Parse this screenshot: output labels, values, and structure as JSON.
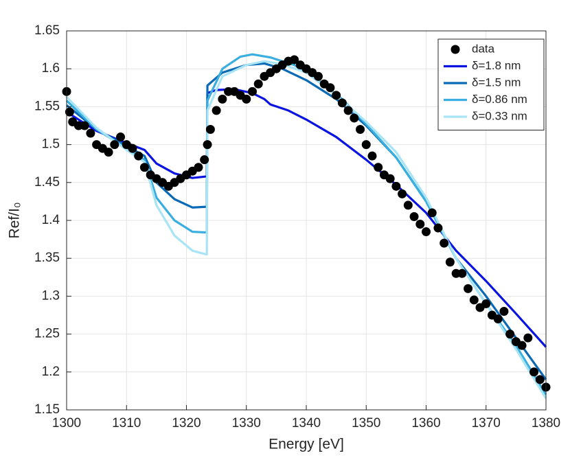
{
  "chart_data": {
    "type": "line",
    "xlabel": "Energy [eV]",
    "ylabel": "Ref/I₀",
    "xlim": [
      1300,
      1380
    ],
    "xticks": [
      1300,
      1310,
      1320,
      1330,
      1340,
      1350,
      1360,
      1370,
      1380
    ],
    "ylim": [
      1.15,
      1.65
    ],
    "yticks": [
      1.15,
      1.2,
      1.25,
      1.3,
      1.35,
      1.4,
      1.45,
      1.5,
      1.55,
      1.6,
      1.65
    ],
    "grid": true,
    "legend": "northeast",
    "series": [
      {
        "name": "data",
        "color": "#000000",
        "style": "markers",
        "x": [
          1300,
          1300.5,
          1301,
          1302,
          1303,
          1304,
          1305,
          1306,
          1307,
          1308,
          1309,
          1310,
          1311,
          1312,
          1313,
          1314,
          1315,
          1316,
          1317,
          1318,
          1319,
          1320,
          1321,
          1322,
          1323,
          1323.5,
          1324,
          1325,
          1326,
          1327,
          1328,
          1329,
          1330,
          1331,
          1332,
          1333,
          1334,
          1335,
          1336,
          1337,
          1338,
          1339,
          1340,
          1341,
          1342,
          1343,
          1344,
          1345,
          1346,
          1347,
          1348,
          1349,
          1350,
          1351,
          1352,
          1353,
          1354,
          1355,
          1356,
          1357,
          1358,
          1359,
          1360,
          1361,
          1362,
          1363,
          1364,
          1365,
          1366,
          1367,
          1368,
          1369,
          1370,
          1371,
          1372,
          1373,
          1374,
          1375,
          1376,
          1377,
          1378,
          1379,
          1380
        ],
        "values": [
          1.57,
          1.543,
          1.53,
          1.525,
          1.525,
          1.515,
          1.5,
          1.495,
          1.49,
          1.5,
          1.51,
          1.5,
          1.495,
          1.485,
          1.47,
          1.46,
          1.455,
          1.45,
          1.445,
          1.45,
          1.455,
          1.46,
          1.465,
          1.47,
          1.48,
          1.5,
          1.52,
          1.545,
          1.56,
          1.57,
          1.57,
          1.565,
          1.56,
          1.57,
          1.58,
          1.59,
          1.595,
          1.6,
          1.605,
          1.61,
          1.612,
          1.605,
          1.6,
          1.595,
          1.59,
          1.58,
          1.575,
          1.565,
          1.555,
          1.545,
          1.535,
          1.52,
          1.5,
          1.485,
          1.47,
          1.46,
          1.455,
          1.445,
          1.435,
          1.42,
          1.405,
          1.395,
          1.385,
          1.41,
          1.39,
          1.37,
          1.345,
          1.33,
          1.33,
          1.31,
          1.295,
          1.285,
          1.29,
          1.275,
          1.27,
          1.28,
          1.25,
          1.24,
          1.235,
          1.245,
          1.2,
          1.19,
          1.18
        ]
      },
      {
        "name": "δ=1.8 nm",
        "color": "#0a14e0",
        "style": "line",
        "x": [
          1300,
          1305,
          1310,
          1313,
          1315,
          1318,
          1321,
          1323.4,
          1323.5,
          1325,
          1328,
          1331,
          1333,
          1334,
          1337,
          1340,
          1345,
          1350,
          1355,
          1360,
          1365,
          1370,
          1375,
          1380
        ],
        "values": [
          1.543,
          1.518,
          1.502,
          1.493,
          1.475,
          1.462,
          1.456,
          1.458,
          1.568,
          1.572,
          1.573,
          1.568,
          1.56,
          1.553,
          1.545,
          1.533,
          1.51,
          1.48,
          1.447,
          1.41,
          1.36,
          1.32,
          1.277,
          1.233
        ]
      },
      {
        "name": "δ=1.5 nm",
        "color": "#0a6ab5",
        "style": "line",
        "x": [
          1300,
          1305,
          1310,
          1313,
          1315,
          1318,
          1321,
          1323.4,
          1323.5,
          1326,
          1330,
          1333,
          1336,
          1340,
          1345,
          1350,
          1355,
          1360,
          1365,
          1370,
          1375,
          1380
        ],
        "values": [
          1.552,
          1.52,
          1.498,
          1.485,
          1.45,
          1.428,
          1.417,
          1.418,
          1.578,
          1.595,
          1.605,
          1.607,
          1.6,
          1.585,
          1.56,
          1.525,
          1.483,
          1.425,
          1.35,
          1.3,
          1.245,
          1.19
        ]
      },
      {
        "name": "δ=0.86 nm",
        "color": "#3aaede",
        "style": "line",
        "x": [
          1300,
          1305,
          1310,
          1313,
          1315,
          1318,
          1321,
          1323.4,
          1323.5,
          1326,
          1329,
          1331,
          1334,
          1338,
          1342,
          1346,
          1350,
          1355,
          1360,
          1365,
          1370,
          1375,
          1380
        ],
        "values": [
          1.558,
          1.52,
          1.495,
          1.48,
          1.43,
          1.4,
          1.385,
          1.384,
          1.558,
          1.6,
          1.616,
          1.619,
          1.615,
          1.605,
          1.585,
          1.56,
          1.527,
          1.483,
          1.425,
          1.35,
          1.29,
          1.235,
          1.17
        ]
      },
      {
        "name": "δ=0.33 nm",
        "color": "#a8e4f5",
        "style": "line",
        "x": [
          1300,
          1305,
          1310,
          1313,
          1315,
          1318,
          1321,
          1323.4,
          1323.5,
          1326,
          1330,
          1333,
          1336,
          1340,
          1345,
          1350,
          1355,
          1360,
          1365,
          1370,
          1375,
          1380
        ],
        "values": [
          1.563,
          1.522,
          1.493,
          1.477,
          1.42,
          1.38,
          1.36,
          1.355,
          1.545,
          1.59,
          1.605,
          1.61,
          1.606,
          1.595,
          1.565,
          1.53,
          1.49,
          1.43,
          1.35,
          1.29,
          1.23,
          1.165
        ]
      }
    ]
  }
}
